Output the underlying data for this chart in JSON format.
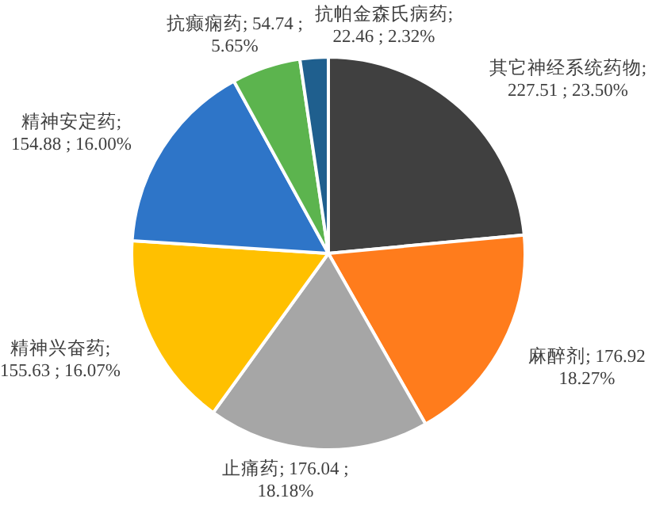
{
  "chart_data": {
    "type": "pie",
    "categories": [
      "其它神经系统药物",
      "麻醉剂",
      "止痛药",
      "精神兴奋药",
      "精神安定药",
      "抗癫痫药",
      "抗帕金森氏病药"
    ],
    "values": [
      227.51,
      176.92,
      176.04,
      155.63,
      154.88,
      54.74,
      22.46
    ],
    "value_labels": [
      ";\n227.51 ; 23.50%",
      "; 176.92\n18.27%",
      "; 176.04 ;\n18.18%",
      ";\n155.63 ; 16.07%",
      ";\n154.88 ; 16.00%",
      "; 54.74 ;\n5.65%",
      ";\n22.46 ; 2.32%"
    ],
    "colors": [
      "#404040",
      "#ff7c1c",
      "#a6a6a6",
      "#ffc000",
      "#2e75c8",
      "#5cb44e",
      "#1f5f8e"
    ]
  }
}
